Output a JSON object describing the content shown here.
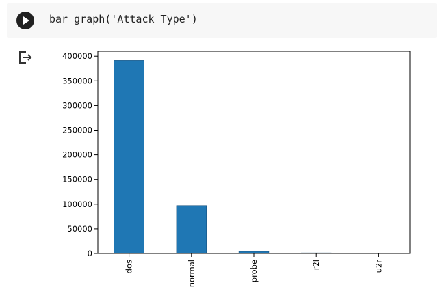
{
  "cell": {
    "code": "bar_graph('Attack Type')"
  },
  "icons": {
    "run": "play-circle-icon",
    "output": "output-arrow-icon"
  },
  "colors": {
    "bar": "#1f77b4",
    "cell_background": "#f7f7f7"
  },
  "chart_data": {
    "type": "bar",
    "title": "",
    "xlabel": "",
    "ylabel": "",
    "categories": [
      "dos",
      "normal",
      "probe",
      "r2l",
      "u2r"
    ],
    "values": [
      391458,
      97278,
      4107,
      1126,
      52
    ],
    "ylim": [
      0,
      410000
    ],
    "yticks": [
      0,
      50000,
      100000,
      150000,
      200000,
      250000,
      300000,
      350000,
      400000
    ],
    "grid": false,
    "legend": "none"
  }
}
